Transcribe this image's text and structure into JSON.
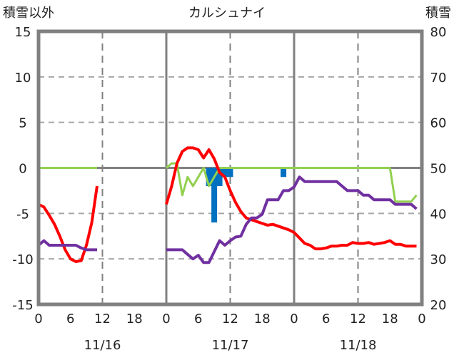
{
  "chart_data": {
    "type": "line",
    "title": "カルシュナイ",
    "left_axis_label": "積雪以外",
    "right_axis_label": "積雪",
    "left_ylim": [
      -15,
      15
    ],
    "left_ticks": [
      "15",
      "10",
      "5",
      "0",
      "-5",
      "-10",
      "-15"
    ],
    "left_tick_values": [
      15,
      10,
      5,
      0,
      -5,
      -10,
      -15
    ],
    "right_ylim": [
      20,
      80
    ],
    "right_ticks": [
      "80",
      "70",
      "60",
      "50",
      "40",
      "30",
      "20"
    ],
    "right_tick_values": [
      80,
      70,
      60,
      50,
      40,
      30,
      20
    ],
    "xlim_hours": [
      0,
      72
    ],
    "x_ticks": [
      "0",
      "6",
      "12",
      "18",
      "0",
      "6",
      "12",
      "18",
      "0",
      "6",
      "12",
      "18",
      "0"
    ],
    "dates": [
      "11/16",
      "11/17",
      "11/18"
    ],
    "grid": true,
    "colors": {
      "temperature": "#ff0000",
      "purple": "#7030a0",
      "snow": "#92d050",
      "bars": "#0070c0",
      "frame": "#808080"
    },
    "series": [
      {
        "name": "temperature",
        "axis": "left",
        "start_hours": [
          0,
          24
        ],
        "segments": [
          [
            -4,
            -4.3,
            -5.2,
            -6.2,
            -7.5,
            -9,
            -10,
            -10.3,
            -10.2,
            -8.5,
            -6,
            -2
          ],
          [
            -4,
            -2,
            0.5,
            1.8,
            2.2,
            2.2,
            2.0,
            1.1,
            2.0,
            1.0,
            -0.5,
            -1,
            -2.5,
            -3.8,
            -4.8,
            -5.5,
            -5.7,
            -5.9,
            -6.1,
            -6.3,
            -6.2,
            -6.4,
            -6.6,
            -6.8,
            -7.1,
            -7.7,
            -8.3,
            -8.5,
            -8.9,
            -8.9,
            -8.8,
            -8.6,
            -8.6,
            -8.5,
            -8.5,
            -8.2,
            -8.3,
            -8.3,
            -8.2,
            -8.4,
            -8.3,
            -8.2,
            -8.0,
            -8.4,
            -8.4,
            -8.6,
            -8.6,
            -8.6
          ]
        ]
      },
      {
        "name": "purple",
        "axis": "left",
        "start_hours": [
          0,
          24
        ],
        "segments": [
          [
            -8.5,
            -8,
            -8.5,
            -8.5,
            -8.5,
            -8.5,
            -8.5,
            -8.5,
            -8.8,
            -9,
            -9,
            -9
          ],
          [
            -9,
            -9,
            -9,
            -9,
            -9.5,
            -10,
            -9.6,
            -10.4,
            -10.4,
            -9.2,
            -8,
            -8.5,
            -8,
            -7.6,
            -7.5,
            -6.2,
            -5.5,
            -5.5,
            -5.1,
            -3.5,
            -3.5,
            -3.5,
            -2.5,
            -2.5,
            -2.1,
            -1,
            -1.5,
            -1.5,
            -1.5,
            -1.5,
            -1.5,
            -1.5,
            -1.5,
            -2,
            -2.5,
            -2.5,
            -2.5,
            -3,
            -3,
            -3.5,
            -3.5,
            -3.5,
            -3.5,
            -4,
            -4,
            -4,
            -4,
            -4.5
          ]
        ]
      },
      {
        "name": "snow",
        "axis": "right",
        "start_hours": [
          0,
          24
        ],
        "segments": [
          [
            50,
            50,
            50,
            50,
            50,
            50,
            50,
            50,
            50,
            50,
            50,
            50
          ],
          [
            50,
            51,
            51,
            44,
            48,
            46,
            48,
            50,
            46,
            48,
            50,
            50,
            50,
            50,
            50,
            50,
            50,
            50,
            50,
            50,
            50,
            50,
            50,
            50,
            50,
            50,
            50,
            50,
            50,
            50,
            50,
            50,
            50,
            50,
            50,
            50,
            50,
            50,
            50,
            50,
            50,
            50,
            50,
            42.6,
            42.6,
            42.6,
            42.6,
            44
          ]
        ]
      }
    ],
    "bars": {
      "name": "bars",
      "axis": "left",
      "hours": [
        32,
        33,
        34,
        35,
        36,
        46
      ],
      "values": [
        -2,
        -6,
        -2,
        -1,
        -1,
        -1
      ]
    }
  }
}
